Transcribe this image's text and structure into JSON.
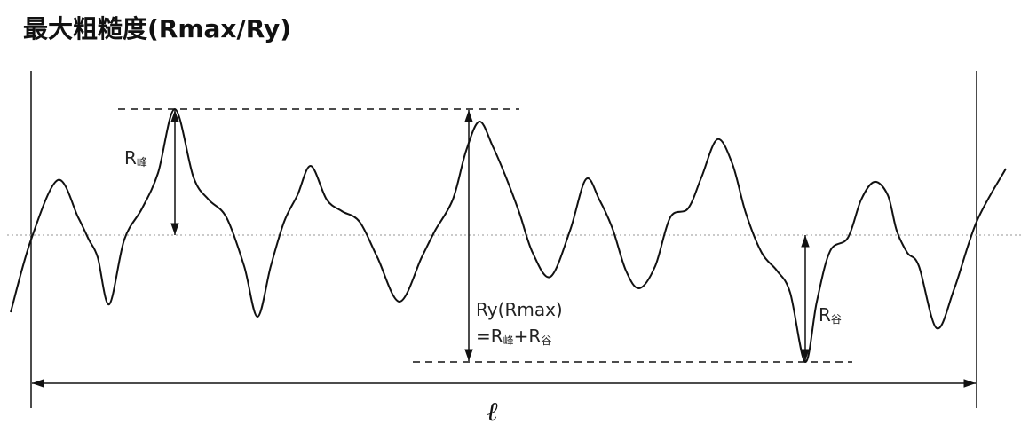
{
  "header": {
    "title": "最大粗糙度(Rmax/Ry)"
  },
  "labels": {
    "peak": {
      "main": "R",
      "sub": "峰"
    },
    "valley": {
      "main": "R",
      "sub": "谷"
    },
    "ry": "Ry(Rmax)",
    "formula": [
      "=R",
      "峰",
      "+R",
      "谷"
    ],
    "length": "ℓ"
  }
}
